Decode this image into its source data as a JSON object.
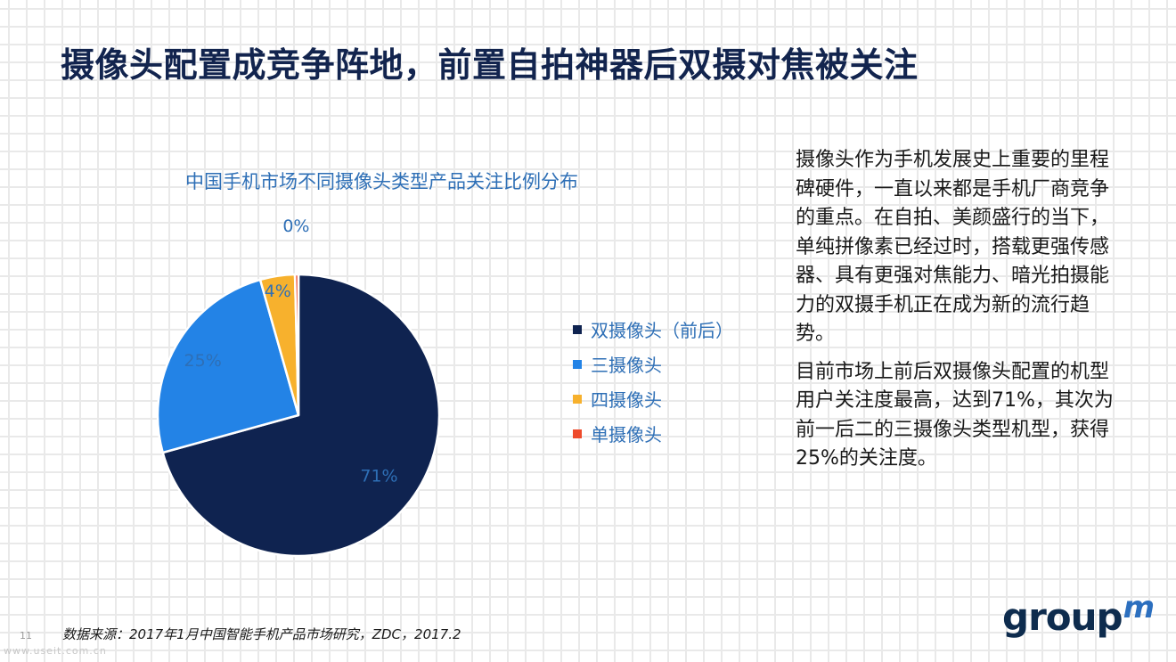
{
  "slide": {
    "title": "摄像头配置成竞争阵地，前置自拍神器后双摄对焦被关注",
    "description": [
      "摄像头作为手机发展史上重要的里程碑硬件，一直以来都是手机厂商竞争的重点。在自拍、美颜盛行的当下，单纯拼像素已经过时，搭载更强传感器、具有更强对焦能力、暗光拍摄能力的双摄手机正在成为新的流行趋势。",
      "目前市场上前后双摄像头配置的机型用户关注度最高，达到71%，其次为前一后二的三摄像头类型机型，获得25%的关注度。"
    ],
    "source": "数据来源：2017年1月中国智能手机产品市场研究，ZDC，2017.2",
    "page_number": "11",
    "watermark": "www.useit.com.cn",
    "logo": {
      "text": "group",
      "mark": "m"
    }
  },
  "chart_data": {
    "type": "pie",
    "title": "中国手机市场不同摄像头类型产品关注比例分布",
    "legend_position": "right",
    "start_angle": "top",
    "direction": "clockwise",
    "categories": [
      "双摄像头（前后）",
      "三摄像头",
      "四摄像头",
      "单摄像头"
    ],
    "values": [
      71,
      25,
      4,
      0.4
    ],
    "labels": [
      "71%",
      "25%",
      "4%",
      "0%"
    ],
    "colors": [
      "#0f2350",
      "#2383e6",
      "#f7b12d",
      "#ee4a2b"
    ],
    "label_colors": [
      "#2e6fb6",
      "#2e6fb6",
      "#2e6fb6",
      "#2e6fb6"
    ]
  }
}
